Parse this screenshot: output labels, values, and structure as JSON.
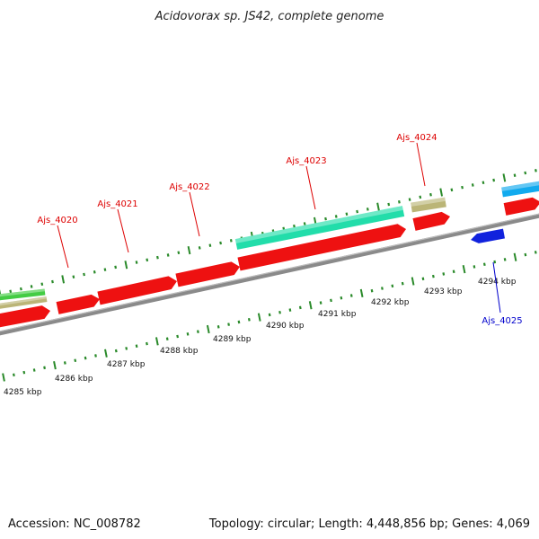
{
  "title": "Acidovorax sp. JS42, complete genome",
  "footer": {
    "accession": "Accession: NC_008782",
    "summary": "Topology: circular; Length: 4,448,856 bp; Genes: 4,069"
  },
  "colors": {
    "forward_gene": "#ee1111",
    "reverse_gene": "#1122dd",
    "cds_green": "#44cc44",
    "cds_teal": "#22ddaa",
    "cds_cyan": "#11aaee",
    "cds_khaki": "#bbb577",
    "backbone": "#8a8a8a",
    "tick": "#2a8a2a",
    "forward_label": "#dd0000",
    "reverse_label": "#0000cc"
  },
  "scale_labels": [
    "4285 kbp",
    "4286 kbp",
    "4287 kbp",
    "4288 kbp",
    "4289 kbp",
    "4290 kbp",
    "4291 kbp",
    "4292 kbp",
    "4293 kbp",
    "4294 kbp"
  ],
  "gene_labels": [
    {
      "name": "Ajs_4020",
      "strand": "forward"
    },
    {
      "name": "Ajs_4021",
      "strand": "forward"
    },
    {
      "name": "Ajs_4022",
      "strand": "forward"
    },
    {
      "name": "Ajs_4023",
      "strand": "forward"
    },
    {
      "name": "Ajs_4024",
      "strand": "forward"
    },
    {
      "name": "Ajs_4025",
      "strand": "reverse"
    }
  ]
}
